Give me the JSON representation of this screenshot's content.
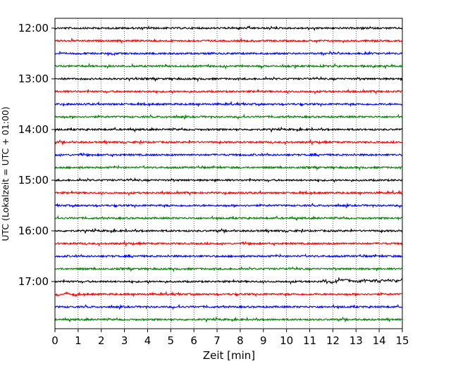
{
  "chart_data": {
    "type": "line",
    "title": "",
    "xlabel": "Zeit  [min]",
    "ylabel": "UTC (Lokalzeit = UTC + 01:00)",
    "xlim": [
      0,
      15
    ],
    "x_ticks": [
      "0",
      "1",
      "2",
      "3",
      "4",
      "5",
      "6",
      "7",
      "8",
      "9",
      "10",
      "11",
      "12",
      "13",
      "14",
      "15"
    ],
    "y_ticks": [
      "12:00",
      "13:00",
      "14:00",
      "15:00",
      "16:00",
      "17:00"
    ],
    "grid": "vertical dotted at each minute",
    "trace_interval_min": 15,
    "trace_colors": [
      "#000000",
      "#ff0000",
      "#0000ff",
      "#008000"
    ],
    "traces": [
      {
        "start": "12:00",
        "color": "#000000"
      },
      {
        "start": "12:15",
        "color": "#ff0000"
      },
      {
        "start": "12:30",
        "color": "#0000ff"
      },
      {
        "start": "12:45",
        "color": "#008000"
      },
      {
        "start": "13:00",
        "color": "#000000"
      },
      {
        "start": "13:15",
        "color": "#ff0000"
      },
      {
        "start": "13:30",
        "color": "#0000ff"
      },
      {
        "start": "13:45",
        "color": "#008000"
      },
      {
        "start": "14:00",
        "color": "#000000"
      },
      {
        "start": "14:15",
        "color": "#ff0000"
      },
      {
        "start": "14:30",
        "color": "#0000ff"
      },
      {
        "start": "14:45",
        "color": "#008000"
      },
      {
        "start": "15:00",
        "color": "#000000"
      },
      {
        "start": "15:15",
        "color": "#ff0000"
      },
      {
        "start": "15:30",
        "color": "#0000ff"
      },
      {
        "start": "15:45",
        "color": "#008000"
      },
      {
        "start": "16:00",
        "color": "#000000"
      },
      {
        "start": "16:15",
        "color": "#ff0000"
      },
      {
        "start": "16:30",
        "color": "#0000ff"
      },
      {
        "start": "16:45",
        "color": "#008000"
      },
      {
        "start": "17:00",
        "color": "#000000"
      },
      {
        "start": "17:15",
        "color": "#ff0000"
      },
      {
        "start": "17:30",
        "color": "#0000ff"
      },
      {
        "start": "17:45",
        "color": "#008000"
      }
    ]
  }
}
